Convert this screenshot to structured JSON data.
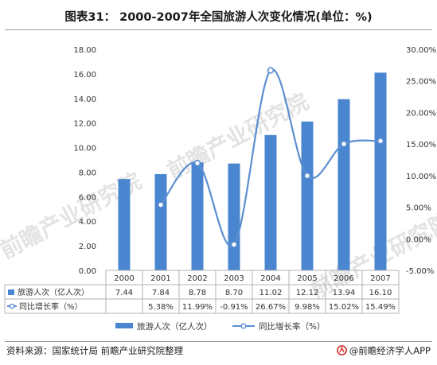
{
  "title": "图表31：  2000-2007年全国旅游人次变化情况(单位：%)",
  "source": "资料来源：国家统计局 前瞻产业研究院整理",
  "brand": "@前瞻经济学人APP",
  "watermark": "前瞻产业研究院",
  "colors": {
    "bar": "#4a86cf",
    "line": "#5b8fd0",
    "marker_fill": "#ffffff",
    "axis_text": "#333333",
    "grid": "#d9d9d9",
    "table_line": "#b3b3b3",
    "watermark": "#e3e3e3"
  },
  "chart_data": {
    "type": "bar",
    "categories": [
      "2000",
      "2001",
      "2002",
      "2003",
      "2004",
      "2005",
      "2006",
      "2007"
    ],
    "series": [
      {
        "name": "旅游人次（亿人次）",
        "type": "bar",
        "axis": "left",
        "values": [
          7.44,
          7.84,
          8.78,
          8.7,
          11.02,
          12.12,
          13.94,
          16.1
        ],
        "labels": [
          "7.44",
          "7.84",
          "8.78",
          "8.70",
          "11.02",
          "12.12",
          "13.94",
          "16.10"
        ]
      },
      {
        "name": "同比增长率（%）",
        "type": "line",
        "smooth": true,
        "axis": "right",
        "values": [
          null,
          5.38,
          11.99,
          -0.91,
          26.67,
          9.98,
          15.02,
          15.49
        ],
        "labels": [
          "",
          "5.38%",
          "11.99%",
          "-0.91%",
          "26.67%",
          "9.98%",
          "15.02%",
          "15.49%"
        ]
      }
    ],
    "y_left": {
      "min": 0,
      "max": 18,
      "step": 2,
      "ticks": [
        "0.00",
        "2.00",
        "4.00",
        "6.00",
        "8.00",
        "10.00",
        "12.00",
        "14.00",
        "16.00",
        "18.00"
      ]
    },
    "y_right": {
      "min": -5,
      "max": 30,
      "step": 5,
      "ticks": [
        "-5.00%",
        "0.00%",
        "5.00%",
        "10.00%",
        "15.00%",
        "20.00%",
        "25.00%",
        "30.00%"
      ]
    },
    "data_table": true,
    "grid": false,
    "legend": {
      "position": "bottom",
      "entries": [
        "旅游人次（亿人次）",
        "同比增长率（%）"
      ]
    }
  }
}
